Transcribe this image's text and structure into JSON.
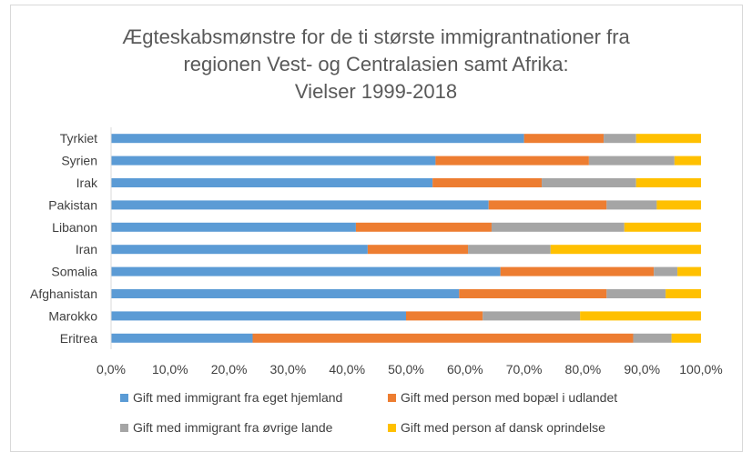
{
  "chart_data": {
    "type": "bar",
    "orientation": "horizontal",
    "stacked": "percent",
    "title_lines": [
      "Ægteskabsmønstre for de ti største immigrantnationer fra",
      "regionen Vest- og Centralasien samt Afrika:",
      "Vielser 1999-2018"
    ],
    "categories": [
      "Tyrkiet",
      "Syrien",
      "Irak",
      "Pakistan",
      "Libanon",
      "Iran",
      "Somalia",
      "Afghanistan",
      "Marokko",
      "Eritrea"
    ],
    "series": [
      {
        "name": "Gift med immigrant fra eget hjemland",
        "color": "#5b9bd5",
        "values": [
          70.0,
          55.0,
          54.5,
          64.0,
          41.5,
          43.5,
          66.0,
          59.0,
          50.0,
          24.0
        ]
      },
      {
        "name": "Gift med person med bopæl i udlandet",
        "color": "#ed7d31",
        "values": [
          13.5,
          26.0,
          18.5,
          20.0,
          23.0,
          17.0,
          26.0,
          25.0,
          13.0,
          64.5
        ]
      },
      {
        "name": "Gift med immigrant fra øvrige lande",
        "color": "#a5a5a5",
        "values": [
          5.5,
          14.5,
          16.0,
          8.5,
          22.5,
          14.0,
          4.0,
          10.0,
          16.5,
          6.5
        ]
      },
      {
        "name": "Gift med person af dansk oprindelse",
        "color": "#ffc000",
        "values": [
          11.0,
          4.5,
          11.0,
          7.5,
          13.0,
          25.5,
          4.0,
          6.0,
          20.5,
          5.0
        ]
      }
    ],
    "x_ticks": [
      "0,0%",
      "10,0%",
      "20,0%",
      "30,0%",
      "40,0%",
      "50,0%",
      "60,0%",
      "70,0%",
      "80,0%",
      "90,0%",
      "100,0%"
    ],
    "xlim": [
      0,
      100
    ],
    "grid": false,
    "legend_position": "bottom"
  }
}
